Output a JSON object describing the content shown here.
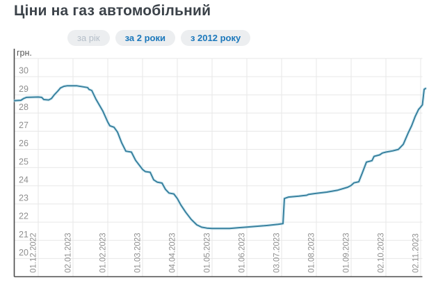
{
  "header": {
    "title": "Ціни на газ автомобільний"
  },
  "tabs": {
    "year": {
      "label": "за рік",
      "state": "selected-disabled"
    },
    "two_years": {
      "label": "за 2 роки",
      "state": "link"
    },
    "since_2012": {
      "label": "з 2012 року",
      "state": "link"
    }
  },
  "colors": {
    "title": "#3b4249",
    "tab-bg": "#eceef0",
    "tab-active-text": "#b4bec8",
    "tab-link-text": "#1a77bb",
    "grid": "#e7e7e7",
    "axis": "#4a4a4a",
    "tick-text": "#8f8f8f",
    "unit-text": "#555555",
    "line": "#37809e",
    "line-halo": "#c5e3ef"
  },
  "chart_data": {
    "type": "line",
    "title": "Ціни на газ автомобільний",
    "ylabel": "грн.",
    "ylim": [
      19,
      31
    ],
    "y_ticks": [
      20,
      21,
      22,
      23,
      24,
      25,
      26,
      27,
      28,
      29,
      30
    ],
    "x_ticks": [
      "01.12.2022",
      "02.01.2023",
      "01.02.2023",
      "01.03.2023",
      "04.04.2023",
      "01.05.2023",
      "01.06.2023",
      "03.07.2023",
      "01.08.2023",
      "01.09.2023",
      "02.10.2023",
      "02.11.2023"
    ],
    "x_note": "series x values are month-tick offsets: 0 = 01.12.2022 gridline, 11 = 02.11.2023 gridline; negative = days before 01.12.2022",
    "grid": true,
    "legend": "none",
    "series": [
      {
        "points": [
          [
            -0.68,
            28.68
          ],
          [
            -0.5,
            28.7
          ],
          [
            -0.42,
            28.8
          ],
          [
            -0.34,
            28.86
          ],
          [
            0,
            28.88
          ],
          [
            0.1,
            28.86
          ],
          [
            0.16,
            28.74
          ],
          [
            0.3,
            28.72
          ],
          [
            0.38,
            28.8
          ],
          [
            0.46,
            29.0
          ],
          [
            0.56,
            29.2
          ],
          [
            0.64,
            29.38
          ],
          [
            0.74,
            29.47
          ],
          [
            0.84,
            29.5
          ],
          [
            1.1,
            29.5
          ],
          [
            1.3,
            29.44
          ],
          [
            1.42,
            29.4
          ],
          [
            1.46,
            29.3
          ],
          [
            1.54,
            29.24
          ],
          [
            1.66,
            28.76
          ],
          [
            1.86,
            28.1
          ],
          [
            2,
            27.5
          ],
          [
            2.06,
            27.3
          ],
          [
            2.18,
            27.22
          ],
          [
            2.28,
            26.95
          ],
          [
            2.4,
            26.36
          ],
          [
            2.52,
            25.9
          ],
          [
            2.68,
            25.85
          ],
          [
            2.8,
            25.4
          ],
          [
            3,
            24.9
          ],
          [
            3.08,
            24.78
          ],
          [
            3.22,
            24.74
          ],
          [
            3.32,
            24.33
          ],
          [
            3.42,
            24.2
          ],
          [
            3.56,
            24.15
          ],
          [
            3.66,
            23.8
          ],
          [
            3.76,
            23.6
          ],
          [
            3.9,
            23.55
          ],
          [
            4,
            23.3
          ],
          [
            4.1,
            22.95
          ],
          [
            4.24,
            22.55
          ],
          [
            4.4,
            22.15
          ],
          [
            4.56,
            21.85
          ],
          [
            4.7,
            21.72
          ],
          [
            4.85,
            21.67
          ],
          [
            5,
            21.65
          ],
          [
            5.5,
            21.65
          ],
          [
            5.8,
            21.7
          ],
          [
            6,
            21.73
          ],
          [
            6.5,
            21.8
          ],
          [
            6.9,
            21.88
          ],
          [
            7.04,
            21.92
          ],
          [
            7.08,
            23.3
          ],
          [
            7.2,
            23.38
          ],
          [
            7.5,
            23.43
          ],
          [
            7.72,
            23.48
          ],
          [
            7.78,
            23.53
          ],
          [
            8,
            23.58
          ],
          [
            8.3,
            23.65
          ],
          [
            8.6,
            23.75
          ],
          [
            8.9,
            23.92
          ],
          [
            9,
            24.02
          ],
          [
            9.08,
            24.16
          ],
          [
            9.22,
            24.22
          ],
          [
            9.32,
            24.7
          ],
          [
            9.44,
            25.3
          ],
          [
            9.6,
            25.38
          ],
          [
            9.66,
            25.62
          ],
          [
            9.82,
            25.7
          ],
          [
            9.9,
            25.8
          ],
          [
            10,
            25.85
          ],
          [
            10.2,
            25.92
          ],
          [
            10.36,
            26.0
          ],
          [
            10.5,
            26.28
          ],
          [
            10.64,
            26.9
          ],
          [
            10.74,
            27.3
          ],
          [
            10.84,
            27.8
          ],
          [
            10.94,
            28.2
          ],
          [
            11,
            28.33
          ],
          [
            11.05,
            28.45
          ],
          [
            11.1,
            29.3
          ],
          [
            11.14,
            29.35
          ]
        ]
      }
    ]
  }
}
